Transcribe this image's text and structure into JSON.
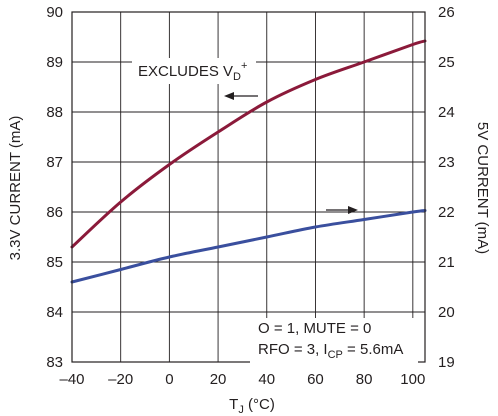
{
  "chart_data": {
    "type": "line",
    "x": [
      -40,
      -20,
      0,
      20,
      40,
      60,
      80,
      100,
      105
    ],
    "xlim": [
      -40,
      105
    ],
    "x_ticks": [
      -40,
      -20,
      0,
      20,
      40,
      60,
      80,
      100
    ],
    "x_tick_labels": [
      "–40",
      "–20",
      "0",
      "20",
      "40",
      "60",
      "80",
      "100"
    ],
    "ylim_left": [
      83,
      90
    ],
    "y_ticks_left": [
      83,
      84,
      85,
      86,
      87,
      88,
      89,
      90
    ],
    "ylim_right": [
      19,
      26
    ],
    "y_ticks_right": [
      19,
      20,
      21,
      22,
      23,
      24,
      25,
      26
    ],
    "grid": true,
    "xlabel": {
      "main": "T",
      "sub": "J",
      "suffix": " (°C)"
    },
    "ylabel_left": "3.3V CURRENT (mA)",
    "ylabel_right": "5V CURRENT (mA)",
    "series": [
      {
        "axis": "left",
        "color": "#8b1a3a",
        "values": [
          85.3,
          86.2,
          86.95,
          87.6,
          88.2,
          88.65,
          89.0,
          89.35,
          89.42
        ]
      },
      {
        "axis": "right",
        "color": "#3a4f9e",
        "values": [
          20.6,
          20.85,
          21.1,
          21.3,
          21.5,
          21.7,
          21.85,
          22.0,
          22.03
        ]
      }
    ],
    "annotations": {
      "excludes": {
        "prefix": "EXCLUDES V",
        "sub": "D",
        "sup": "+"
      },
      "cond_line1": "O = 1, MUTE = 0",
      "cond_line2": {
        "prefix": "RFO = 3, I",
        "sub": "CP",
        "suffix": " = 5.6mA"
      }
    }
  }
}
